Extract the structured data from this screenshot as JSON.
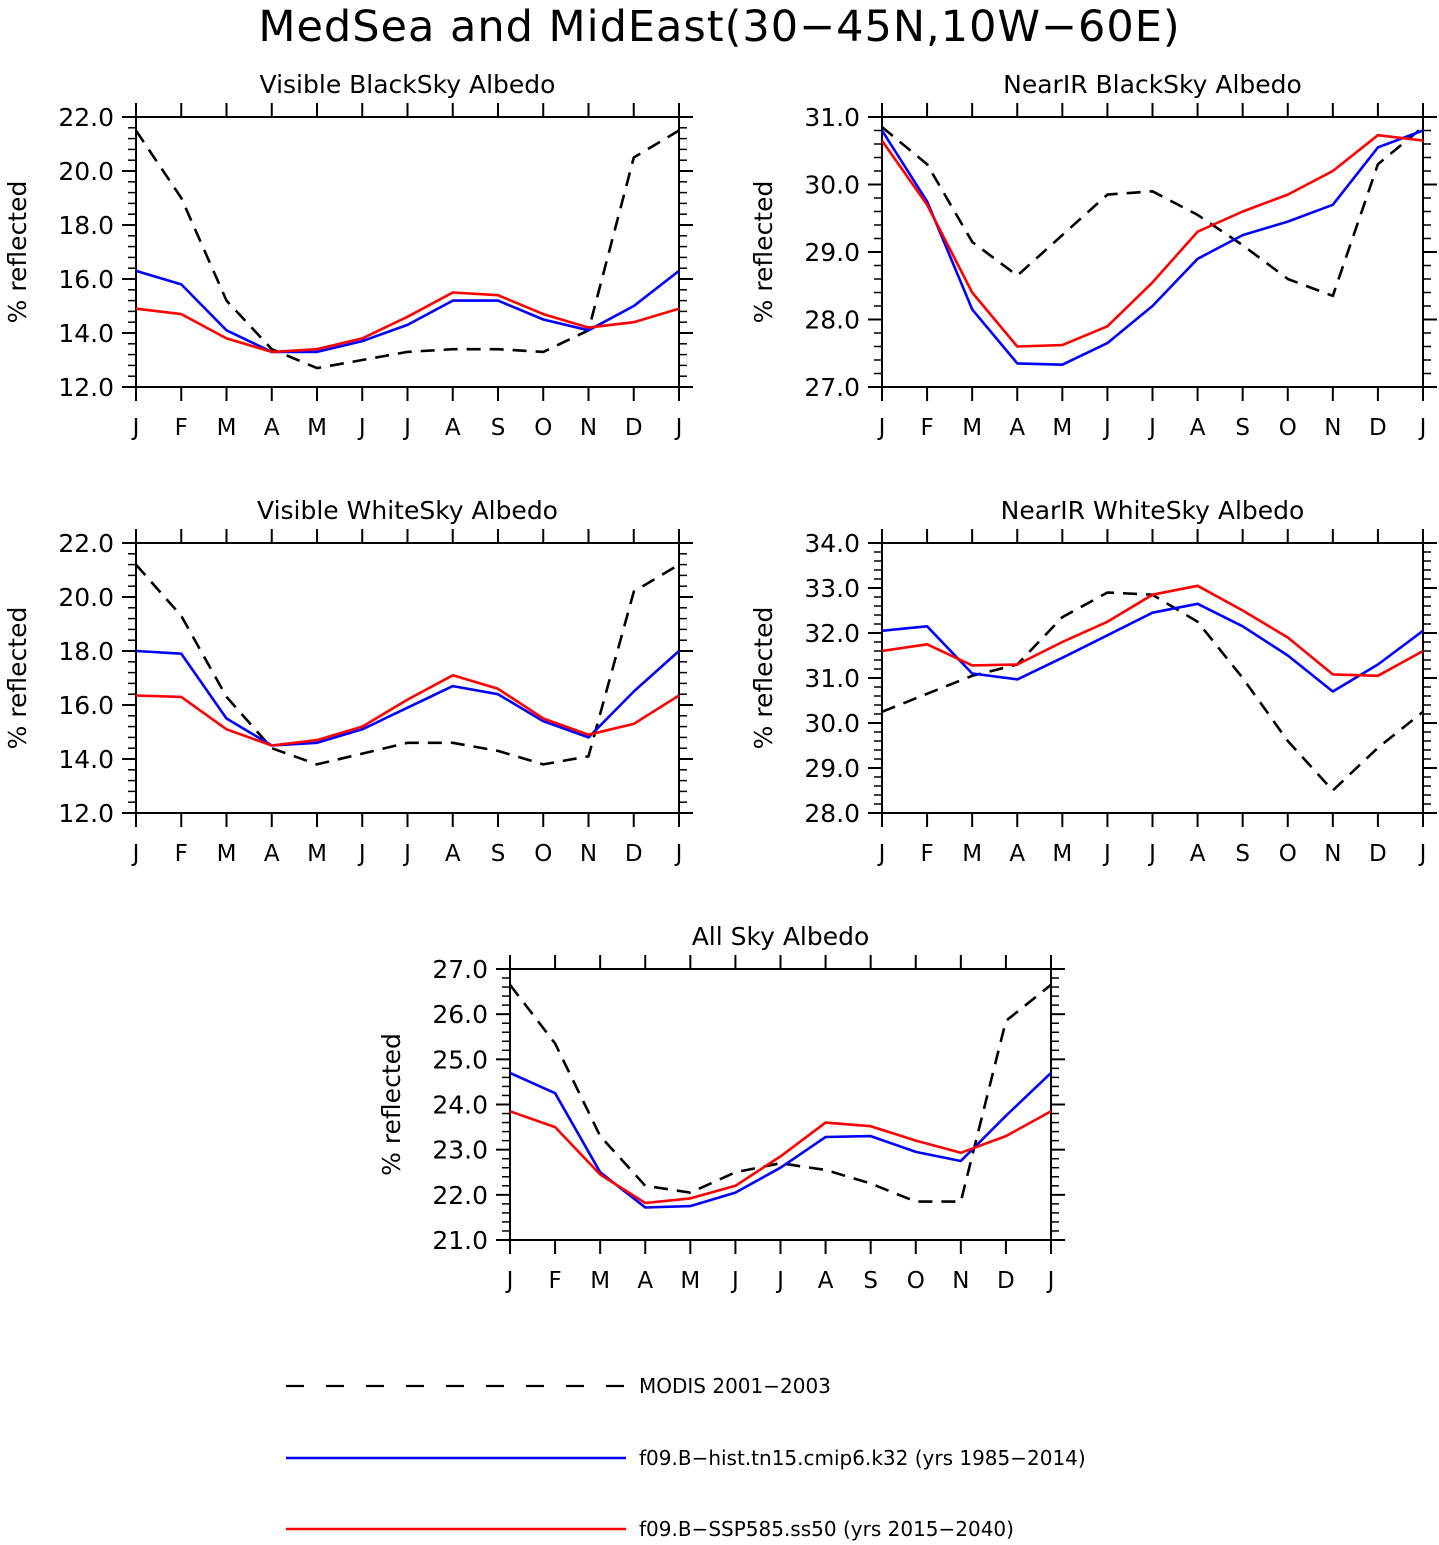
{
  "title": "MedSea and MidEast(30−45N,10W−60E)",
  "colors": {
    "modis": "#000000",
    "hist": "#0000ff",
    "ssp": "#ff0000"
  },
  "months": [
    "J",
    "F",
    "M",
    "A",
    "M",
    "J",
    "J",
    "A",
    "S",
    "O",
    "N",
    "D",
    "J"
  ],
  "ylabel": "% reflected",
  "legend": [
    {
      "key": "modis",
      "label": "MODIS 2001−2003",
      "style": "dashed"
    },
    {
      "key": "hist",
      "label": "f09.B−hist.tn15.cmip6.k32 (yrs 1985−2014)",
      "style": "solid"
    },
    {
      "key": "ssp",
      "label": "f09.B−SSP585.ss50 (yrs 2015−2040)",
      "style": "solid"
    }
  ],
  "chart_data": [
    {
      "type": "line",
      "title": "Visible BlackSky Albedo",
      "ylabel": "% reflected",
      "ylim": [
        12.0,
        22.0
      ],
      "yticks": [
        "12.0",
        "14.0",
        "16.0",
        "18.0",
        "20.0",
        "22.0"
      ],
      "categories": [
        "J",
        "F",
        "M",
        "A",
        "M",
        "J",
        "J",
        "A",
        "S",
        "O",
        "N",
        "D",
        "J"
      ],
      "series": [
        {
          "name": "MODIS 2001−2003",
          "key": "modis",
          "values": [
            21.5,
            19.0,
            15.2,
            13.4,
            12.7,
            13.0,
            13.3,
            13.4,
            13.4,
            13.3,
            14.1,
            20.5,
            21.5
          ]
        },
        {
          "name": "f09.B−hist.tn15.cmip6.k32 (yrs 1985−2014)",
          "key": "hist",
          "values": [
            16.3,
            15.8,
            14.1,
            13.3,
            13.3,
            13.7,
            14.3,
            15.2,
            15.2,
            14.5,
            14.1,
            15.0,
            16.3
          ]
        },
        {
          "name": "f09.B−SSP585.ss50 (yrs 2015−2040)",
          "key": "ssp",
          "values": [
            14.9,
            14.7,
            13.8,
            13.3,
            13.4,
            13.8,
            14.6,
            15.5,
            15.4,
            14.7,
            14.2,
            14.4,
            14.9
          ]
        }
      ]
    },
    {
      "type": "line",
      "title": "NearIR BlackSky Albedo",
      "ylabel": "% reflected",
      "ylim": [
        27.0,
        31.0
      ],
      "yticks": [
        "27.0",
        "28.0",
        "29.0",
        "30.0",
        "31.0"
      ],
      "categories": [
        "J",
        "F",
        "M",
        "A",
        "M",
        "J",
        "J",
        "A",
        "S",
        "O",
        "N",
        "D",
        "J"
      ],
      "series": [
        {
          "name": "MODIS 2001−2003",
          "key": "modis",
          "values": [
            30.85,
            30.3,
            29.15,
            28.65,
            29.25,
            29.85,
            29.9,
            29.55,
            29.1,
            28.6,
            28.35,
            30.3,
            30.85
          ]
        },
        {
          "name": "f09.B−hist.tn15.cmip6.k32 (yrs 1985−2014)",
          "key": "hist",
          "values": [
            30.8,
            29.75,
            28.15,
            27.35,
            27.33,
            27.65,
            28.2,
            28.9,
            29.25,
            29.45,
            29.7,
            30.55,
            30.8
          ]
        },
        {
          "name": "f09.B−SSP585.ss50 (yrs 2015−2040)",
          "key": "ssp",
          "values": [
            30.65,
            29.7,
            28.4,
            27.6,
            27.62,
            27.9,
            28.55,
            29.3,
            29.6,
            29.85,
            30.2,
            30.73,
            30.65
          ]
        }
      ]
    },
    {
      "type": "line",
      "title": "Visible WhiteSky Albedo",
      "ylabel": "% reflected",
      "ylim": [
        12.0,
        22.0
      ],
      "yticks": [
        "12.0",
        "14.0",
        "16.0",
        "18.0",
        "20.0",
        "22.0"
      ],
      "categories": [
        "J",
        "F",
        "M",
        "A",
        "M",
        "J",
        "J",
        "A",
        "S",
        "O",
        "N",
        "D",
        "J"
      ],
      "series": [
        {
          "name": "MODIS 2001−2003",
          "key": "modis",
          "values": [
            21.2,
            19.3,
            16.3,
            14.4,
            13.8,
            14.2,
            14.6,
            14.6,
            14.3,
            13.8,
            14.1,
            20.2,
            21.2
          ]
        },
        {
          "name": "f09.B−hist.tn15.cmip6.k32 (yrs 1985−2014)",
          "key": "hist",
          "values": [
            18.0,
            17.9,
            15.5,
            14.5,
            14.6,
            15.1,
            15.9,
            16.7,
            16.4,
            15.4,
            14.8,
            16.5,
            18.0
          ]
        },
        {
          "name": "f09.B−SSP585.ss50 (yrs 2015−2040)",
          "key": "ssp",
          "values": [
            16.35,
            16.3,
            15.1,
            14.5,
            14.7,
            15.2,
            16.2,
            17.1,
            16.6,
            15.5,
            14.9,
            15.3,
            16.35
          ]
        }
      ]
    },
    {
      "type": "line",
      "title": "NearIR WhiteSky Albedo",
      "ylabel": "% reflected",
      "ylim": [
        28.0,
        34.0
      ],
      "yticks": [
        "28.0",
        "29.0",
        "30.0",
        "31.0",
        "32.0",
        "33.0",
        "34.0"
      ],
      "categories": [
        "J",
        "F",
        "M",
        "A",
        "M",
        "J",
        "J",
        "A",
        "S",
        "O",
        "N",
        "D",
        "J"
      ],
      "series": [
        {
          "name": "MODIS 2001−2003",
          "key": "modis",
          "values": [
            30.25,
            30.65,
            31.05,
            31.3,
            32.35,
            32.9,
            32.85,
            32.25,
            31.0,
            29.6,
            28.5,
            29.45,
            30.25
          ]
        },
        {
          "name": "f09.B−hist.tn15.cmip6.k32 (yrs 1985−2014)",
          "key": "hist",
          "values": [
            32.05,
            32.15,
            31.1,
            30.97,
            31.45,
            31.95,
            32.45,
            32.65,
            32.15,
            31.5,
            30.7,
            31.3,
            32.05
          ]
        },
        {
          "name": "f09.B−SSP585.ss50 (yrs 2015−2040)",
          "key": "ssp",
          "values": [
            31.6,
            31.75,
            31.28,
            31.3,
            31.8,
            32.25,
            32.85,
            33.05,
            32.5,
            31.9,
            31.08,
            31.05,
            31.6
          ]
        }
      ]
    },
    {
      "type": "line",
      "title": "All Sky Albedo",
      "ylabel": "% reflected",
      "ylim": [
        21.0,
        27.0
      ],
      "yticks": [
        "21.0",
        "22.0",
        "23.0",
        "24.0",
        "25.0",
        "26.0",
        "27.0"
      ],
      "categories": [
        "J",
        "F",
        "M",
        "A",
        "M",
        "J",
        "J",
        "A",
        "S",
        "O",
        "N",
        "D",
        "J"
      ],
      "series": [
        {
          "name": "MODIS 2001−2003",
          "key": "modis",
          "values": [
            26.65,
            25.35,
            23.3,
            22.2,
            22.05,
            22.5,
            22.7,
            22.55,
            22.25,
            21.85,
            21.85,
            25.85,
            26.65
          ]
        },
        {
          "name": "f09.B−hist.tn15.cmip6.k32 (yrs 1985−2014)",
          "key": "hist",
          "values": [
            24.7,
            24.25,
            22.5,
            21.72,
            21.75,
            22.05,
            22.6,
            23.28,
            23.3,
            22.95,
            22.75,
            23.75,
            24.7
          ]
        },
        {
          "name": "f09.B−SSP585.ss50 (yrs 2015−2040)",
          "key": "ssp",
          "values": [
            23.85,
            23.5,
            22.45,
            21.82,
            21.92,
            22.2,
            22.85,
            23.6,
            23.52,
            23.2,
            22.93,
            23.3,
            23.85
          ]
        }
      ]
    }
  ]
}
